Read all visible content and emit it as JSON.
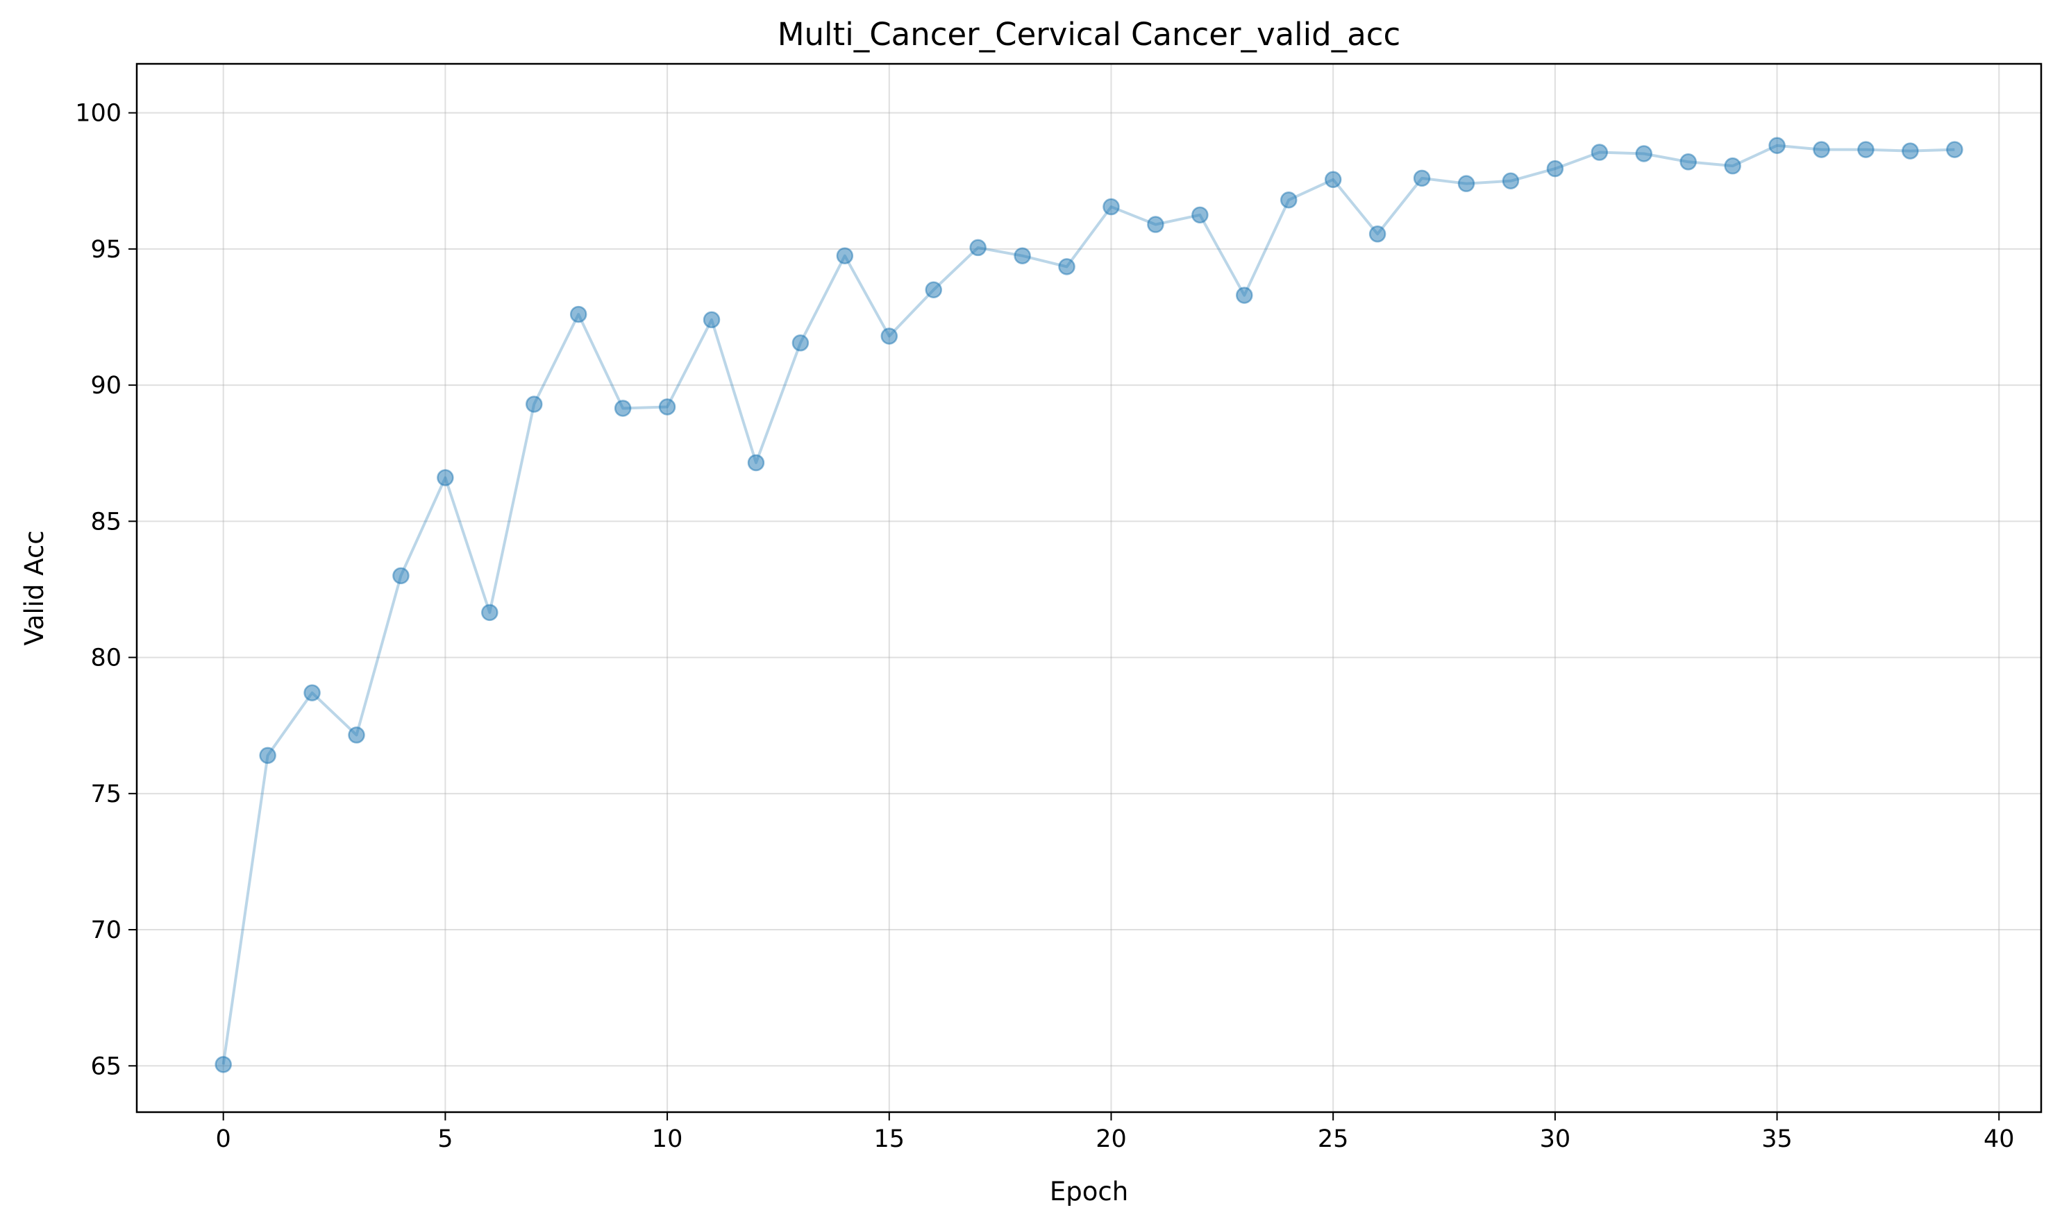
{
  "chart_data": {
    "type": "line",
    "title": "Multi_Cancer_Cervical Cancer_valid_acc",
    "xlabel": "Epoch",
    "ylabel": "Valid Acc",
    "x": [
      0,
      1,
      2,
      3,
      4,
      5,
      6,
      7,
      8,
      9,
      10,
      11,
      12,
      13,
      14,
      15,
      16,
      17,
      18,
      19,
      20,
      21,
      22,
      23,
      24,
      25,
      26,
      27,
      28,
      29,
      30,
      31,
      32,
      33,
      34,
      35,
      36,
      37,
      38,
      39
    ],
    "series": [
      {
        "values": [
          65.05,
          76.4,
          78.7,
          77.15,
          83.0,
          86.6,
          81.65,
          89.3,
          92.6,
          89.15,
          89.2,
          92.4,
          87.15,
          91.55,
          94.75,
          91.8,
          93.5,
          95.05,
          94.75,
          94.35,
          96.55,
          95.9,
          96.25,
          93.3,
          96.8,
          97.55,
          95.55,
          97.6,
          97.4,
          97.5,
          97.95,
          98.55,
          98.5,
          98.2,
          98.05,
          98.8,
          98.65,
          98.65,
          98.6,
          98.65
        ]
      }
    ],
    "xlim": [
      -1.95,
      40.95
    ],
    "ylim": [
      63.3,
      101.8
    ],
    "xticks": [
      0,
      5,
      10,
      15,
      20,
      25,
      30,
      35,
      40
    ],
    "yticks": [
      65,
      70,
      75,
      80,
      85,
      90,
      95,
      100
    ],
    "grid": true,
    "colors": {
      "line": "#1f77b4",
      "grid": "#b0b0b0",
      "axes": "#000000"
    }
  }
}
